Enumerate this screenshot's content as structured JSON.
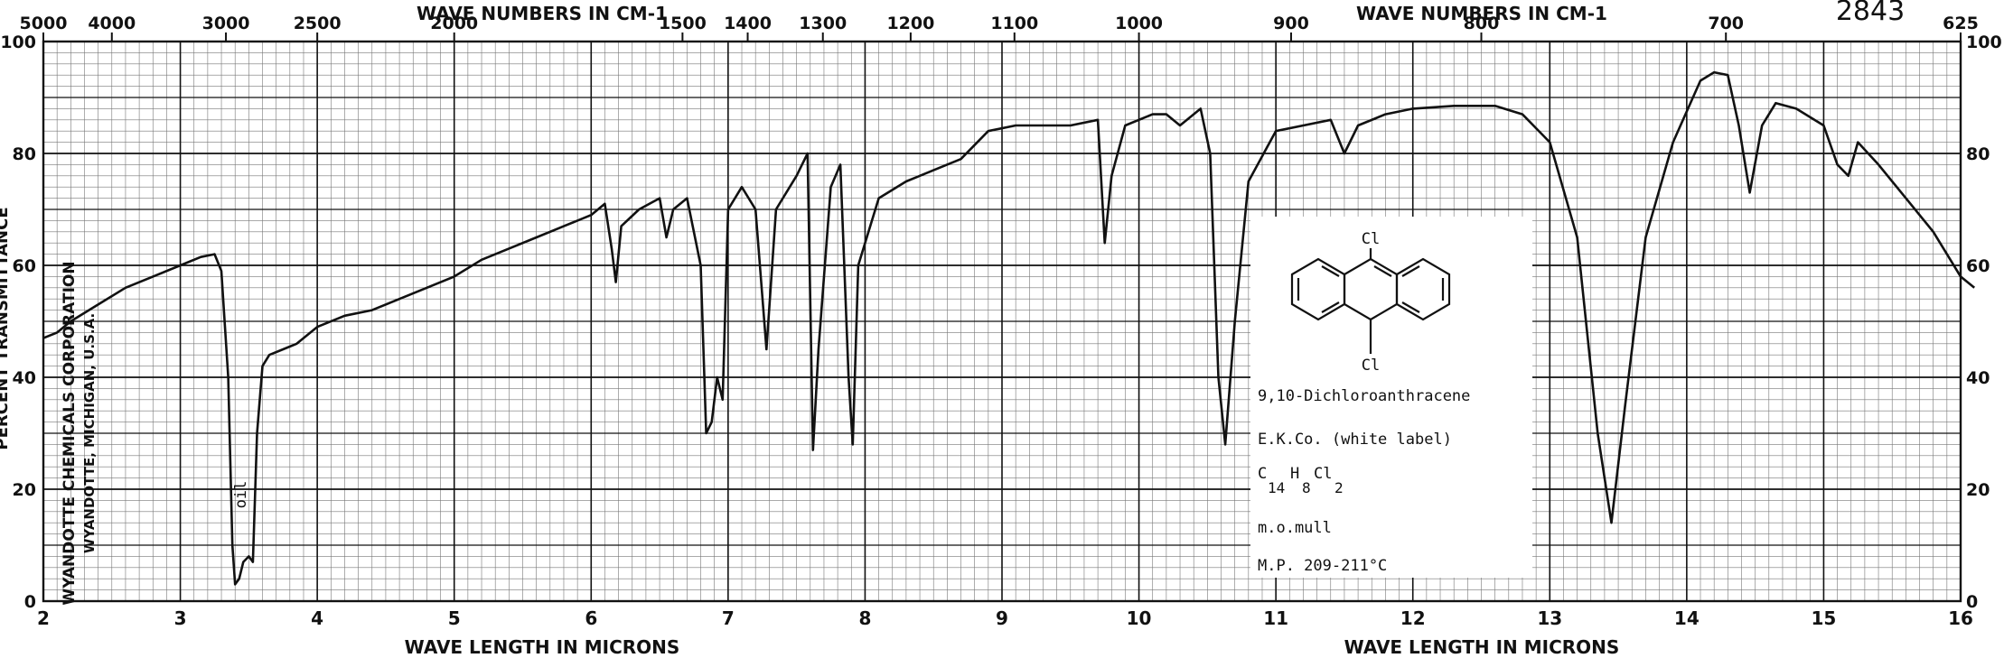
{
  "chart_data": {
    "type": "line",
    "top_label_left": "WAVE NUMBERS IN CM-1",
    "top_label_right": "WAVE NUMBERS IN CM-1",
    "bottom_label_left": "WAVE LENGTH IN MICRONS",
    "bottom_label_right": "WAVE LENGTH IN MICRONS",
    "y_axis_label": "PERCENT TRANSMITTANCE",
    "corner_number": "2843",
    "xlim": [
      2,
      16
    ],
    "ylim": [
      0,
      100
    ],
    "x_ticks": [
      "2",
      "3",
      "4",
      "5",
      "6",
      "7",
      "8",
      "9",
      "10",
      "11",
      "12",
      "13",
      "14",
      "15",
      "16"
    ],
    "y_ticks": [
      "0",
      "20",
      "40",
      "60",
      "80",
      "100"
    ],
    "wavenumber_ticks": [
      {
        "label": "5000",
        "um": 2.0
      },
      {
        "label": "4000",
        "um": 2.5
      },
      {
        "label": "3000",
        "um": 3.333
      },
      {
        "label": "2500",
        "um": 4.0
      },
      {
        "label": "2000",
        "um": 5.0
      },
      {
        "label": "1500",
        "um": 6.667
      },
      {
        "label": "1400",
        "um": 7.143
      },
      {
        "label": "1300",
        "um": 7.692
      },
      {
        "label": "1200",
        "um": 8.333
      },
      {
        "label": "1100",
        "um": 9.091
      },
      {
        "label": "1000",
        "um": 10.0
      },
      {
        "label": "900",
        "um": 11.111
      },
      {
        "label": "800",
        "um": 12.5
      },
      {
        "label": "700",
        "um": 14.286
      },
      {
        "label": "625",
        "um": 16.0
      }
    ],
    "series": [
      {
        "color": "#111111",
        "points": [
          [
            2.0,
            47
          ],
          [
            2.1,
            48
          ],
          [
            2.2,
            50
          ],
          [
            2.4,
            53
          ],
          [
            2.6,
            56
          ],
          [
            2.8,
            58
          ],
          [
            3.0,
            60
          ],
          [
            3.15,
            61.5
          ],
          [
            3.25,
            62
          ],
          [
            3.3,
            59
          ],
          [
            3.35,
            40
          ],
          [
            3.38,
            10
          ],
          [
            3.4,
            3
          ],
          [
            3.43,
            4
          ],
          [
            3.46,
            7
          ],
          [
            3.5,
            8
          ],
          [
            3.53,
            7
          ],
          [
            3.56,
            30
          ],
          [
            3.6,
            42
          ],
          [
            3.65,
            44
          ],
          [
            3.75,
            45
          ],
          [
            3.85,
            46
          ],
          [
            4.0,
            49
          ],
          [
            4.2,
            51
          ],
          [
            4.4,
            52
          ],
          [
            4.6,
            54
          ],
          [
            4.8,
            56
          ],
          [
            5.0,
            58
          ],
          [
            5.2,
            61
          ],
          [
            5.4,
            63
          ],
          [
            5.6,
            65
          ],
          [
            5.8,
            67
          ],
          [
            6.0,
            69
          ],
          [
            6.1,
            71
          ],
          [
            6.15,
            63
          ],
          [
            6.18,
            57
          ],
          [
            6.22,
            67
          ],
          [
            6.35,
            70
          ],
          [
            6.5,
            72
          ],
          [
            6.55,
            65
          ],
          [
            6.6,
            70
          ],
          [
            6.7,
            72
          ],
          [
            6.8,
            60
          ],
          [
            6.84,
            30
          ],
          [
            6.88,
            32
          ],
          [
            6.92,
            40
          ],
          [
            6.96,
            36
          ],
          [
            7.0,
            70
          ],
          [
            7.1,
            74
          ],
          [
            7.2,
            70
          ],
          [
            7.28,
            45
          ],
          [
            7.35,
            70
          ],
          [
            7.5,
            76
          ],
          [
            7.58,
            80
          ],
          [
            7.62,
            27
          ],
          [
            7.66,
            45
          ],
          [
            7.75,
            74
          ],
          [
            7.82,
            78
          ],
          [
            7.88,
            40
          ],
          [
            7.91,
            28
          ],
          [
            7.95,
            60
          ],
          [
            8.1,
            72
          ],
          [
            8.3,
            75
          ],
          [
            8.5,
            77
          ],
          [
            8.7,
            79
          ],
          [
            8.9,
            84
          ],
          [
            9.1,
            85
          ],
          [
            9.3,
            85
          ],
          [
            9.5,
            85
          ],
          [
            9.7,
            86
          ],
          [
            9.75,
            64
          ],
          [
            9.8,
            76
          ],
          [
            9.9,
            85
          ],
          [
            10.1,
            87
          ],
          [
            10.2,
            87
          ],
          [
            10.3,
            85
          ],
          [
            10.45,
            88
          ],
          [
            10.52,
            80
          ],
          [
            10.58,
            40
          ],
          [
            10.63,
            28
          ],
          [
            10.7,
            50
          ],
          [
            10.8,
            75
          ],
          [
            11.0,
            84
          ],
          [
            11.2,
            85
          ],
          [
            11.4,
            86
          ],
          [
            11.5,
            80
          ],
          [
            11.6,
            85
          ],
          [
            11.8,
            87
          ],
          [
            12.0,
            88
          ],
          [
            12.3,
            88.5
          ],
          [
            12.6,
            88.5
          ],
          [
            12.8,
            87
          ],
          [
            13.0,
            82
          ],
          [
            13.2,
            65
          ],
          [
            13.35,
            30
          ],
          [
            13.45,
            14
          ],
          [
            13.55,
            35
          ],
          [
            13.7,
            65
          ],
          [
            13.9,
            82
          ],
          [
            14.1,
            93
          ],
          [
            14.2,
            94.5
          ],
          [
            14.3,
            94
          ],
          [
            14.38,
            85
          ],
          [
            14.46,
            73
          ],
          [
            14.55,
            85
          ],
          [
            14.65,
            89
          ],
          [
            14.8,
            88
          ],
          [
            15.0,
            85
          ],
          [
            15.1,
            78
          ],
          [
            15.18,
            76
          ],
          [
            15.25,
            82
          ],
          [
            15.4,
            78
          ],
          [
            15.6,
            72
          ],
          [
            15.8,
            66
          ],
          [
            16.0,
            58
          ],
          [
            16.1,
            56
          ]
        ]
      }
    ],
    "annotations": {
      "band_label": "oil",
      "manufacturer_line1": "WYANDOTTE CHEMICALS CORPORATION",
      "manufacturer_line2": "WYANDOTTE, MICHIGAN, U.S.A.",
      "structure_top_atom": "Cl",
      "structure_bottom_atom": "Cl",
      "compound_name": "9,10-Dichloroanthracene",
      "source": "E.K.Co. (white label)",
      "formula_c": "C",
      "formula_c_sub": "14",
      "formula_h": "H",
      "formula_h_sub": "8",
      "formula_cl": "Cl",
      "formula_cl_sub": "2",
      "sample_prep": "m.o.mull",
      "melting_point": "M.P. 209-211°C"
    }
  }
}
